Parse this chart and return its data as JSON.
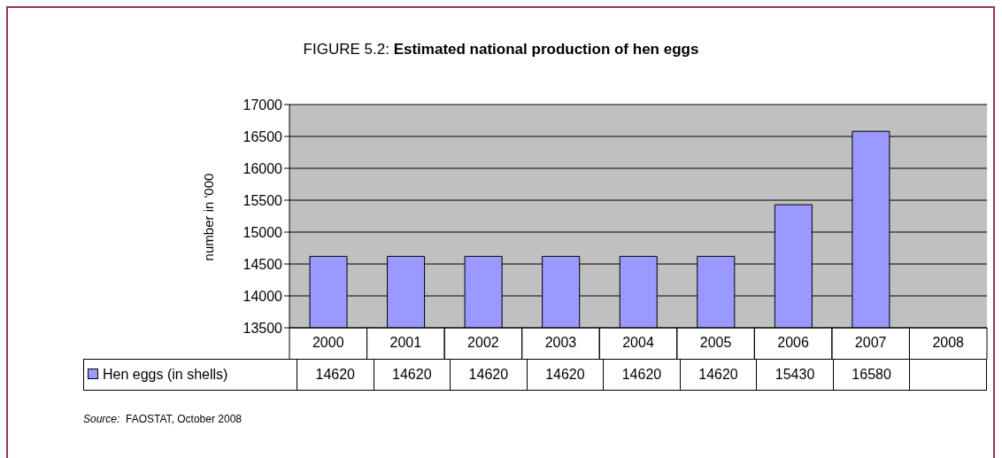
{
  "chart_data": {
    "type": "bar",
    "title": "FIGURE 5.2: Estimated national production of hen eggs",
    "ylabel": "number in '000",
    "categories": [
      "2000",
      "2001",
      "2002",
      "2003",
      "2004",
      "2005",
      "2006",
      "2007",
      "2008"
    ],
    "series": [
      {
        "name": "Hen eggs (in shells)",
        "color": "#9999ff",
        "values": [
          14620,
          14620,
          14620,
          14620,
          14620,
          14620,
          15430,
          16580,
          null
        ]
      }
    ],
    "ylim": [
      13500,
      17000
    ],
    "yticks": [
      13500,
      14000,
      14500,
      15000,
      15500,
      16000,
      16500,
      17000
    ],
    "grid": "y",
    "legend": "bottom",
    "data_labels": true,
    "annotations": [
      "Source: FAOSTAT, October 2008"
    ]
  }
}
